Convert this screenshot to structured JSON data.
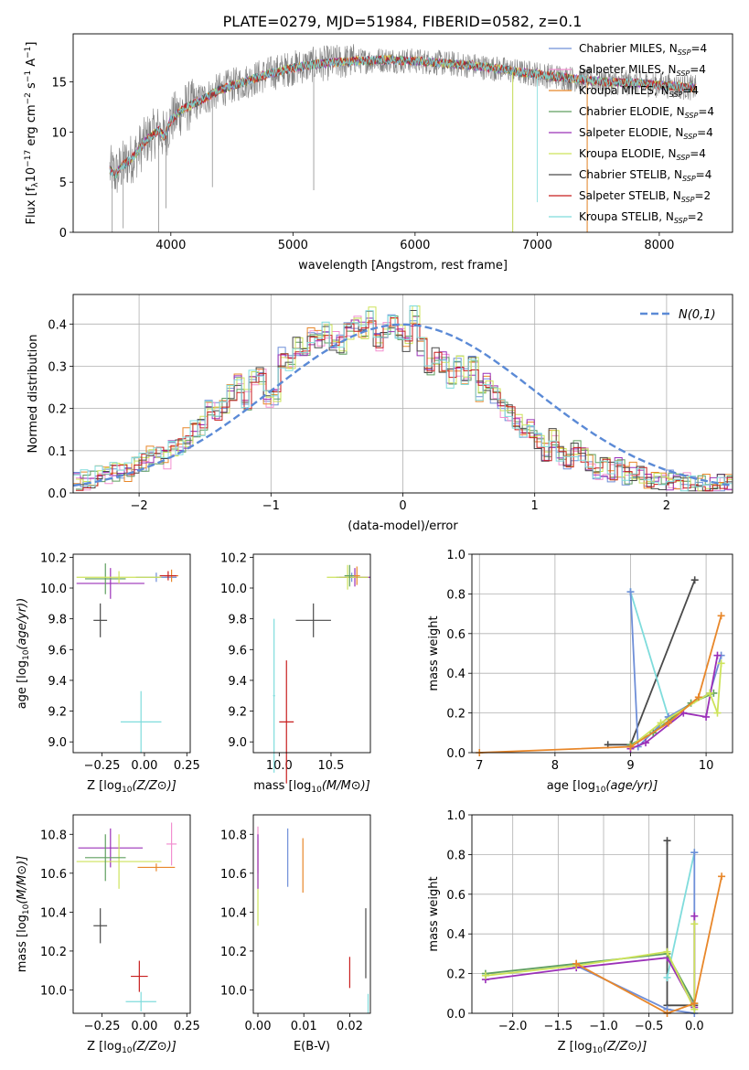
{
  "title": "PLATE=0279, MJD=51984, FIBERID=0582, z=0.1",
  "colors": {
    "chabrier_miles": "#6f8fd8",
    "salpeter_miles": "#f28fd0",
    "kroupa_miles": "#e8872a",
    "chabrier_elodie": "#5f9f5f",
    "salpeter_elodie": "#9b30b8",
    "kroupa_elodie": "#cde35a",
    "chabrier_stelib": "#4a4a4a",
    "salpeter_stelib": "#c81e1e",
    "kroupa_stelib": "#7fdcdc",
    "data": "#808080",
    "gaussian": "#5b8ad6"
  },
  "chart_data": [
    {
      "id": "spectrum",
      "type": "line",
      "title": "PLATE=0279, MJD=51984, FIBERID=0582, z=0.1",
      "xlabel": "wavelength [Angstrom, rest frame]",
      "ylabel": "Flux [f",
      "xlim": [
        3200,
        8600
      ],
      "ylim": [
        0,
        19.8
      ],
      "xticks": [
        4000,
        5000,
        6000,
        7000,
        8000
      ],
      "yticks": [
        0,
        5,
        10,
        15
      ],
      "grid": false,
      "legend_position": "right",
      "data_envelope": {
        "x": [
          3500,
          3550,
          3600,
          3700,
          3800,
          3900,
          3950,
          4000,
          4100,
          4200,
          4300,
          4400,
          4500,
          4600,
          4700,
          4800,
          4900,
          5000,
          5100,
          5200,
          5300,
          5400,
          5500,
          5600,
          5700,
          5800,
          5900,
          6000,
          6100,
          6200,
          6300,
          6400,
          6500,
          6600,
          6700,
          6800,
          6900,
          7000,
          7100,
          7200,
          7300,
          7400,
          7500,
          7600,
          7700,
          7800,
          7900,
          8000,
          8100,
          8200,
          8300
        ],
        "y": [
          6.2,
          5.8,
          6.6,
          7.6,
          9.2,
          10.2,
          9.5,
          11.2,
          12.3,
          12.9,
          13.5,
          14.2,
          14.6,
          15.0,
          15.4,
          15.8,
          16.1,
          16.4,
          16.6,
          16.8,
          16.9,
          17.0,
          17.1,
          17.1,
          17.2,
          17.2,
          17.1,
          17.1,
          17.0,
          16.9,
          16.8,
          16.7,
          16.6,
          16.4,
          16.3,
          16.1,
          15.9,
          15.8,
          15.6,
          15.5,
          15.3,
          15.2,
          15.1,
          15.0,
          14.9,
          14.9,
          14.8,
          14.7,
          14.6,
          14.5,
          14.4
        ]
      },
      "legend": [
        {
          "name": "Chabrier MILES, N",
          "sub": "SSP",
          "tail": "=4",
          "color": "#6f8fd8"
        },
        {
          "name": "Salpeter MILES, N",
          "sub": "SSP",
          "tail": "=4",
          "color": "#f28fd0"
        },
        {
          "name": "Kroupa MILES, N",
          "sub": "SSP",
          "tail": "=4",
          "color": "#e8872a"
        },
        {
          "name": "Chabrier ELODIE, N",
          "sub": "SSP",
          "tail": "=4",
          "color": "#5f9f5f"
        },
        {
          "name": "Salpeter ELODIE, N",
          "sub": "SSP",
          "tail": "=4",
          "color": "#9b30b8"
        },
        {
          "name": "Kroupa ELODIE, N",
          "sub": "SSP",
          "tail": "=4",
          "color": "#cde35a"
        },
        {
          "name": "Chabrier STELIB, N",
          "sub": "SSP",
          "tail": "=4",
          "color": "#4a4a4a"
        },
        {
          "name": "Salpeter STELIB, N",
          "sub": "SSP",
          "tail": "=2",
          "color": "#c81e1e"
        },
        {
          "name": "Kroupa STELIB, N",
          "sub": "SSP",
          "tail": "=2",
          "color": "#7fdcdc"
        }
      ]
    },
    {
      "id": "residuals",
      "type": "line",
      "xlabel": "(data-model)/error",
      "ylabel": "Normed distribution",
      "xlim": [
        -2.5,
        2.5
      ],
      "ylim": [
        0,
        0.47
      ],
      "xticks": [
        -2,
        -1,
        0,
        1,
        2
      ],
      "yticks": [
        0.0,
        0.1,
        0.2,
        0.3,
        0.4
      ],
      "grid": true,
      "legend_position": "top-right",
      "legend": "N(0,1)",
      "hist_base": {
        "bin_width": 0.1,
        "x_start": -2.5,
        "values": [
          0.03,
          0.03,
          0.035,
          0.04,
          0.045,
          0.05,
          0.055,
          0.05,
          0.06,
          0.07,
          0.09,
          0.09,
          0.08,
          0.1,
          0.11,
          0.13,
          0.15,
          0.16,
          0.2,
          0.19,
          0.21,
          0.24,
          0.26,
          0.22,
          0.27,
          0.28,
          0.22,
          0.23,
          0.32,
          0.31,
          0.35,
          0.33,
          0.37,
          0.36,
          0.38,
          0.36,
          0.35,
          0.38,
          0.4,
          0.39,
          0.42,
          0.36,
          0.39,
          0.4,
          0.38,
          0.35,
          0.42,
          0.35,
          0.3,
          0.32,
          0.31,
          0.27,
          0.3,
          0.27,
          0.3,
          0.24,
          0.26,
          0.23,
          0.2,
          0.19,
          0.17,
          0.14,
          0.15,
          0.12,
          0.1,
          0.13,
          0.09,
          0.08,
          0.1,
          0.09,
          0.07,
          0.05,
          0.06,
          0.05,
          0.06,
          0.04,
          0.05,
          0.04,
          0.035,
          0.03,
          0.03,
          0.03,
          0.025,
          0.025,
          0.02,
          0.02,
          0.02,
          0.02,
          0.02,
          0.02
        ]
      }
    },
    {
      "id": "age_vs_Z",
      "type": "scatter",
      "xlabel": "Z [log",
      "ylabel": "age  [log",
      "xlim": [
        -0.42,
        0.27
      ],
      "ylim": [
        8.93,
        10.22
      ],
      "xticks": [
        -0.25,
        0.0,
        0.25
      ],
      "xticklabels": [
        "−0.25",
        "0.00",
        "0.25"
      ],
      "yticks": [
        9.0,
        9.2,
        9.4,
        9.6,
        9.8,
        10.0,
        10.2
      ],
      "points": [
        {
          "x": -0.26,
          "y": 9.79,
          "xerr": 0.04,
          "yerr": 0.11,
          "color": "#4a4a4a"
        },
        {
          "x": -0.02,
          "y": 9.13,
          "xerr": 0.12,
          "yerr": 0.2,
          "color": "#7fdcdc"
        },
        {
          "x": 0.07,
          "y": 10.07,
          "xerr": 0.12,
          "yerr": 0.03,
          "color": "#6f8fd8"
        },
        {
          "x": 0.16,
          "y": 10.08,
          "xerr": 0.04,
          "yerr": 0.04,
          "color": "#e8872a"
        },
        {
          "x": -0.2,
          "y": 10.03,
          "xerr": 0.2,
          "yerr": 0.1,
          "color": "#9b30b8"
        },
        {
          "x": -0.23,
          "y": 10.06,
          "xerr": 0.12,
          "yerr": 0.1,
          "color": "#5f9f5f"
        },
        {
          "x": -0.15,
          "y": 10.07,
          "xerr": 0.25,
          "yerr": 0.04,
          "color": "#cde35a"
        },
        {
          "x": 0.14,
          "y": 10.08,
          "xerr": 0.05,
          "yerr": 0.03,
          "color": "#c81e1e"
        }
      ]
    },
    {
      "id": "age_vs_mass",
      "type": "scatter",
      "xlabel": "mass [log",
      "ylabel": "",
      "xlim": [
        9.75,
        10.88
      ],
      "ylim": [
        8.93,
        10.22
      ],
      "xticks": [
        10.0,
        10.5
      ],
      "yticks": [
        9.0,
        9.2,
        9.4,
        9.6,
        9.8,
        10.0,
        10.2
      ],
      "points": [
        {
          "x": 10.33,
          "y": 9.79,
          "xerr": 0.17,
          "yerr": 0.11,
          "color": "#4a4a4a"
        },
        {
          "x": 9.95,
          "y": 9.3,
          "xerr": 0.01,
          "yerr": 0.5,
          "color": "#7fdcdc"
        },
        {
          "x": 10.07,
          "y": 9.13,
          "xerr": 0.07,
          "yerr": 0.4,
          "color": "#c81e1e"
        },
        {
          "x": 10.7,
          "y": 10.07,
          "xerr": 0.15,
          "yerr": 0.03,
          "color": "#6f8fd8"
        },
        {
          "x": 10.73,
          "y": 10.07,
          "xerr": 0.15,
          "yerr": 0.06,
          "color": "#9b30b8"
        },
        {
          "x": 10.66,
          "y": 10.07,
          "xerr": 0.2,
          "yerr": 0.08,
          "color": "#cde35a"
        },
        {
          "x": 10.68,
          "y": 10.08,
          "xerr": 0.05,
          "yerr": 0.07,
          "color": "#5f9f5f"
        },
        {
          "x": 10.75,
          "y": 10.08,
          "xerr": 0.03,
          "yerr": 0.06,
          "color": "#e8872a"
        }
      ]
    },
    {
      "id": "weight_vs_age",
      "type": "line",
      "xlabel": "age  [log",
      "ylabel": "mass weight",
      "xlim": [
        6.9,
        10.35
      ],
      "ylim": [
        0,
        1.0
      ],
      "xticks": [
        7,
        8,
        9,
        10
      ],
      "yticks": [
        0.0,
        0.2,
        0.4,
        0.6,
        0.8,
        1.0
      ],
      "series": [
        {
          "color": "#4a4a4a",
          "x": [
            8.7,
            9.0,
            9.85
          ],
          "y": [
            0.04,
            0.04,
            0.87
          ]
        },
        {
          "color": "#7fdcdc",
          "x": [
            9.0,
            9.5
          ],
          "y": [
            0.81,
            0.18
          ]
        },
        {
          "color": "#6f8fd8",
          "x": [
            9.0,
            9.1,
            9.5,
            10.05,
            10.2
          ],
          "y": [
            0.81,
            0.03,
            0.18,
            0.3,
            0.49
          ]
        },
        {
          "color": "#9b30b8",
          "x": [
            9.0,
            9.2,
            9.7,
            10.0,
            10.15
          ],
          "y": [
            0.02,
            0.05,
            0.2,
            0.18,
            0.49
          ]
        },
        {
          "color": "#5f9f5f",
          "x": [
            9.0,
            9.3,
            9.8,
            10.1
          ],
          "y": [
            0.04,
            0.1,
            0.25,
            0.3
          ]
        },
        {
          "color": "#cde35a",
          "x": [
            9.0,
            9.4,
            10.05,
            10.15,
            10.2
          ],
          "y": [
            0.03,
            0.15,
            0.3,
            0.2,
            0.45
          ]
        },
        {
          "color": "#e8872a",
          "x": [
            7.0,
            9.0,
            9.5,
            9.9,
            10.2
          ],
          "y": [
            0.0,
            0.03,
            0.15,
            0.28,
            0.69
          ]
        }
      ]
    },
    {
      "id": "mass_vs_Z",
      "type": "scatter",
      "xlabel": "Z [log",
      "ylabel": "mass [log",
      "xlim": [
        -0.42,
        0.27
      ],
      "ylim": [
        9.88,
        10.9
      ],
      "xticks": [
        -0.25,
        0.0,
        0.25
      ],
      "xticklabels": [
        "−0.25",
        "0.00",
        "0.25"
      ],
      "yticks": [
        10.0,
        10.2,
        10.4,
        10.6,
        10.8
      ],
      "points": [
        {
          "x": -0.26,
          "y": 10.33,
          "xerr": 0.04,
          "yerr": 0.09,
          "color": "#4a4a4a"
        },
        {
          "x": -0.02,
          "y": 9.94,
          "xerr": 0.09,
          "yerr": 0.05,
          "color": "#7fdcdc"
        },
        {
          "x": -0.03,
          "y": 10.07,
          "xerr": 0.05,
          "yerr": 0.08,
          "color": "#c81e1e"
        },
        {
          "x": -0.2,
          "y": 10.73,
          "xerr": 0.19,
          "yerr": 0.1,
          "color": "#9b30b8"
        },
        {
          "x": -0.15,
          "y": 10.66,
          "xerr": 0.25,
          "yerr": 0.14,
          "color": "#cde35a"
        },
        {
          "x": -0.23,
          "y": 10.68,
          "xerr": 0.12,
          "yerr": 0.12,
          "color": "#5f9f5f"
        },
        {
          "x": 0.07,
          "y": 10.63,
          "xerr": 0.11,
          "yerr": 0.02,
          "color": "#e8872a"
        },
        {
          "x": 0.16,
          "y": 10.75,
          "xerr": 0.03,
          "yerr": 0.11,
          "color": "#f28fd0"
        }
      ]
    },
    {
      "id": "mass_vs_EBV",
      "type": "scatter",
      "xlabel": "E(B-V)",
      "ylabel": "",
      "xlim": [
        -0.001,
        0.0245
      ],
      "ylim": [
        9.88,
        10.9
      ],
      "xticks": [
        0.0,
        0.01,
        0.02
      ],
      "xticklabels": [
        "0.00",
        "0.01",
        "0.02"
      ],
      "yticks": [
        10.0,
        10.2,
        10.4,
        10.6,
        10.8
      ],
      "points": [
        {
          "x": 0.0,
          "y": 10.55,
          "xerr": 0,
          "yerr": 0.22,
          "color": "#cde35a"
        },
        {
          "x": 0.0,
          "y": 10.72,
          "xerr": 0,
          "yerr": 0.12,
          "color": "#f28fd0"
        },
        {
          "x": 0.0,
          "y": 10.66,
          "xerr": 0,
          "yerr": 0.14,
          "color": "#9b30b8"
        },
        {
          "x": 0.0065,
          "y": 10.68,
          "xerr": 0,
          "yerr": 0.15,
          "color": "#6f8fd8"
        },
        {
          "x": 0.0098,
          "y": 10.64,
          "xerr": 0,
          "yerr": 0.14,
          "color": "#e8872a"
        },
        {
          "x": 0.02,
          "y": 10.09,
          "xerr": 0,
          "yerr": 0.08,
          "color": "#c81e1e"
        },
        {
          "x": 0.0235,
          "y": 10.24,
          "xerr": 0,
          "yerr": 0.18,
          "color": "#4a4a4a"
        },
        {
          "x": 0.024,
          "y": 9.93,
          "xerr": 0,
          "yerr": 0.05,
          "color": "#7fdcdc"
        }
      ]
    },
    {
      "id": "weight_vs_Z",
      "type": "line",
      "xlabel": "Z [log",
      "ylabel": "mass weight",
      "xlim": [
        -2.45,
        0.42
      ],
      "ylim": [
        0,
        1.0
      ],
      "xticks": [
        -2.0,
        -1.5,
        -1.0,
        -0.5,
        0.0
      ],
      "xticklabels": [
        "−2.0",
        "−1.5",
        "−1.0",
        "−0.5",
        "0.0"
      ],
      "yticks": [
        0.0,
        0.2,
        0.4,
        0.6,
        0.8,
        1.0
      ],
      "series": [
        {
          "color": "#4a4a4a",
          "x": [
            -0.3,
            -0.3,
            0.0
          ],
          "y": [
            0.87,
            0.04,
            0.04
          ]
        },
        {
          "color": "#7fdcdc",
          "x": [
            -0.3,
            0.0
          ],
          "y": [
            0.18,
            0.81
          ]
        },
        {
          "color": "#6f8fd8",
          "x": [
            -1.3,
            -0.3,
            0.0,
            0.0
          ],
          "y": [
            0.24,
            0.02,
            0.0,
            0.81
          ]
        },
        {
          "color": "#9b30b8",
          "x": [
            -2.3,
            -1.3,
            -0.3,
            0.0,
            0.0
          ],
          "y": [
            0.17,
            0.23,
            0.28,
            0.03,
            0.49
          ]
        },
        {
          "color": "#5f9f5f",
          "x": [
            -2.3,
            -1.3,
            -0.3,
            0.0
          ],
          "y": [
            0.2,
            0.25,
            0.3,
            0.05
          ]
        },
        {
          "color": "#cde35a",
          "x": [
            -2.3,
            -1.3,
            -0.3,
            0.0,
            0.0
          ],
          "y": [
            0.19,
            0.24,
            0.31,
            0.02,
            0.45
          ]
        },
        {
          "color": "#e8872a",
          "x": [
            -1.3,
            -0.3,
            0.0,
            0.3
          ],
          "y": [
            0.25,
            0.0,
            0.05,
            0.69
          ]
        }
      ]
    }
  ]
}
